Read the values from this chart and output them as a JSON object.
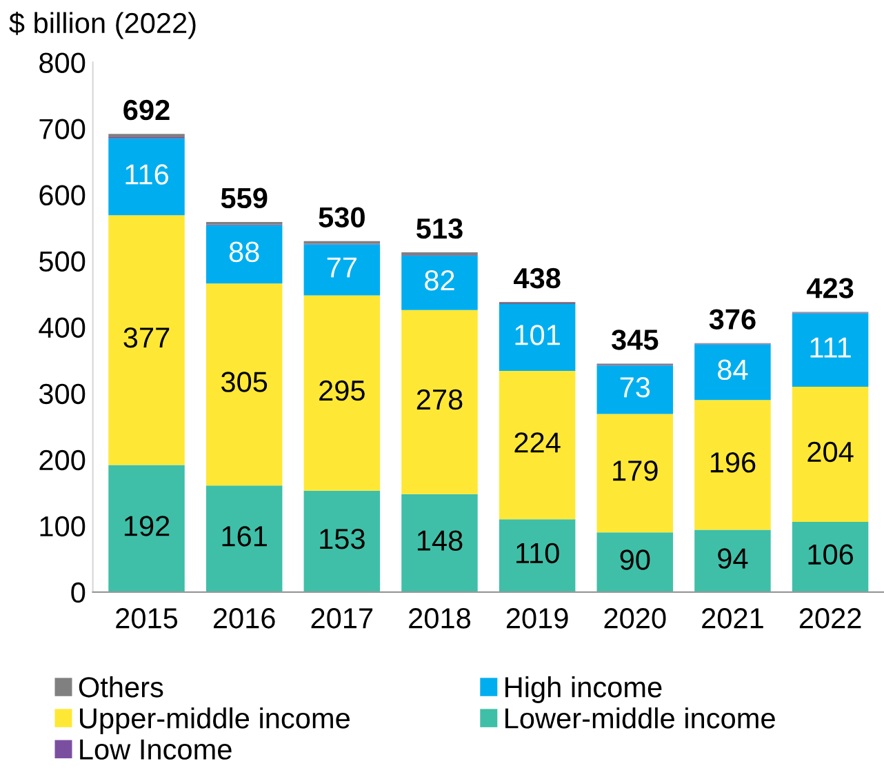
{
  "chart_data": {
    "type": "bar",
    "stacked": true,
    "ylabel": "$ billion (2022)",
    "categories": [
      "2015",
      "2016",
      "2017",
      "2018",
      "2019",
      "2020",
      "2021",
      "2022"
    ],
    "series": [
      {
        "name": "Lower-middle income",
        "color": "#3fbfa8",
        "values": [
          192,
          161,
          153,
          148,
          110,
          90,
          94,
          106
        ],
        "value_labels": [
          "192",
          "161",
          "153",
          "148",
          "110",
          "90",
          "94",
          "106"
        ]
      },
      {
        "name": "Upper-middle income",
        "color": "#ffe835",
        "values": [
          377,
          305,
          295,
          278,
          224,
          179,
          196,
          204
        ],
        "value_labels": [
          "377",
          "305",
          "295",
          "278",
          "224",
          "179",
          "196",
          "204"
        ]
      },
      {
        "name": "High income",
        "color": "#00aeef",
        "values": [
          116,
          88,
          77,
          82,
          101,
          73,
          84,
          111
        ],
        "value_labels": [
          "116",
          "88",
          "77",
          "82",
          "101",
          "73",
          "84",
          "111"
        ]
      },
      {
        "name": "Low Income",
        "color": "#7b4fa0",
        "values": [
          2,
          1,
          1,
          1,
          1,
          1,
          1,
          1
        ]
      },
      {
        "name": "Others",
        "color": "#808080",
        "values": [
          5,
          4,
          4,
          4,
          2,
          2,
          1,
          1
        ]
      }
    ],
    "totals": [
      "692",
      "559",
      "530",
      "513",
      "438",
      "345",
      "376",
      "423"
    ],
    "ylim": [
      0,
      800
    ],
    "yticks": [
      0,
      100,
      200,
      300,
      400,
      500,
      600,
      700,
      800
    ],
    "grid": false,
    "legend": "bottom"
  }
}
